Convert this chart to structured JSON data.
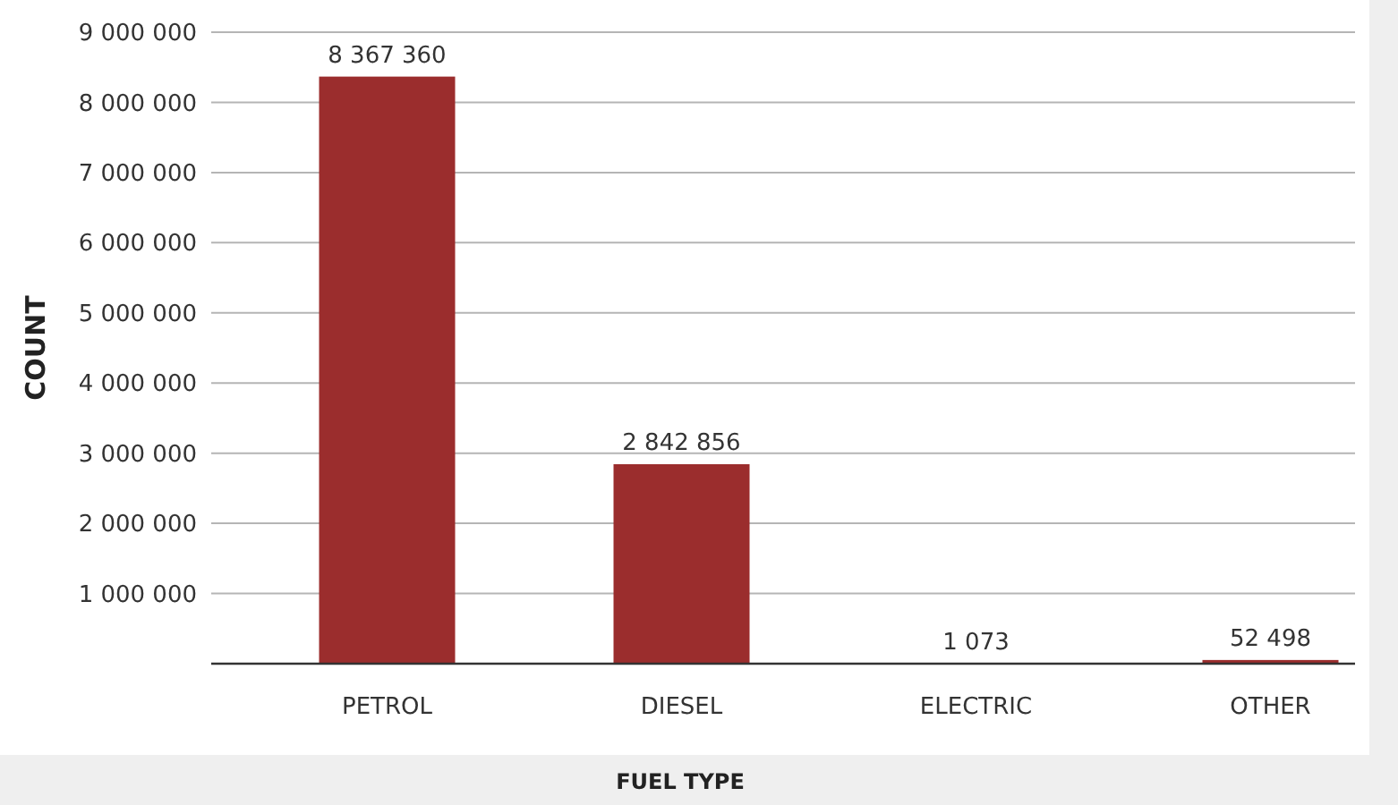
{
  "chart_data": {
    "type": "bar",
    "xlabel": "FUEL TYPE",
    "ylabel": "COUNT",
    "categories": [
      "PETROL",
      "DIESEL",
      "ELECTRIC",
      "OTHER"
    ],
    "values": [
      8367360,
      2842856,
      1073,
      52498
    ],
    "value_labels": [
      "8 367 360",
      "2 842 856",
      "1 073",
      "52 498"
    ],
    "color": "#9b2d2d",
    "ylim": [
      0,
      9000000
    ],
    "yticks": [
      {
        "value": 1000000,
        "label": "1 000 000"
      },
      {
        "value": 2000000,
        "label": "2 000 000"
      },
      {
        "value": 3000000,
        "label": "3 000 000"
      },
      {
        "value": 4000000,
        "label": "4 000 000"
      },
      {
        "value": 5000000,
        "label": "5 000 000"
      },
      {
        "value": 6000000,
        "label": "6 000 000"
      },
      {
        "value": 7000000,
        "label": "7 000 000"
      },
      {
        "value": 8000000,
        "label": "8 000 000"
      },
      {
        "value": 9000000,
        "label": "9 000 000"
      }
    ],
    "grid": "y"
  }
}
